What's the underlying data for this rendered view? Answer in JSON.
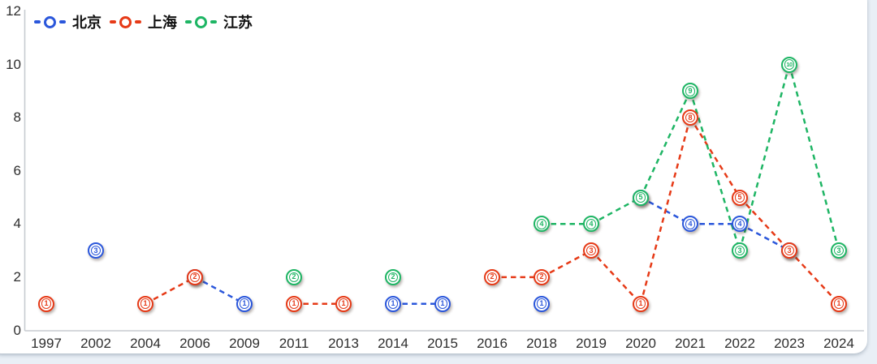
{
  "page": {
    "background_color": "#e9eff6",
    "card_background_color": "#ffffff"
  },
  "axis": {
    "line_color": "#c7cbd0",
    "tick_label_color": "#2e2e2e"
  },
  "legend": {
    "position": "top-left",
    "marker_style": "dash-circle-dash"
  },
  "chart_data": {
    "type": "line",
    "title": "",
    "xlabel": "",
    "ylabel": "",
    "line_style": "dashed",
    "grid": false,
    "point_labels": "value shown inside each circular marker",
    "legend_position": "top-left",
    "ylim": [
      0,
      12
    ],
    "yticks": [
      0,
      2,
      4,
      6,
      8,
      10,
      12
    ],
    "categories": [
      "1997",
      "2002",
      "2004",
      "2006",
      "2009",
      "2011",
      "2013",
      "2014",
      "2015",
      "2016",
      "2018",
      "2019",
      "2020",
      "2021",
      "2022",
      "2023",
      "2024"
    ],
    "series": [
      {
        "name": "北京",
        "color": "#2B57DB",
        "values": [
          null,
          3,
          null,
          2,
          1,
          null,
          null,
          1,
          1,
          null,
          1,
          null,
          5,
          4,
          4,
          3,
          null
        ]
      },
      {
        "name": "上海",
        "color": "#E63A17",
        "values": [
          1,
          null,
          1,
          2,
          null,
          1,
          1,
          null,
          null,
          2,
          2,
          3,
          1,
          8,
          5,
          3,
          1
        ]
      },
      {
        "name": "江苏",
        "color": "#1EB564",
        "values": [
          null,
          null,
          null,
          null,
          null,
          2,
          null,
          2,
          null,
          null,
          4,
          4,
          5,
          9,
          3,
          10,
          3
        ]
      }
    ]
  }
}
